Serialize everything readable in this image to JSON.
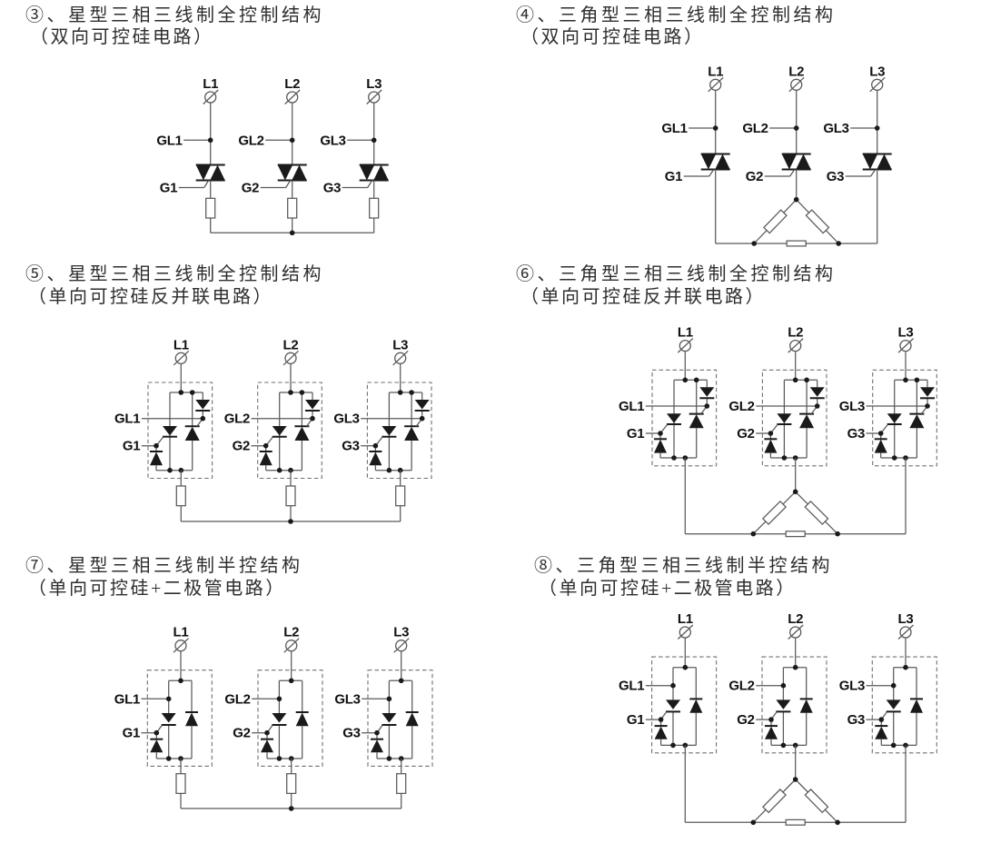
{
  "style": {
    "background": "#ffffff",
    "wire_color": "#595959",
    "device_color": "#1a1a1a",
    "dash_color": "#707070",
    "label_color": "#111111",
    "title_color": "#2e2e2e"
  },
  "panels": [
    {
      "id": "3",
      "title": "③、星型三相三线制全控制结构",
      "subtitle": "（双向可控硅电路）",
      "topology": "star",
      "device": "triac",
      "phases": [
        {
          "line": "L1",
          "trigger": "GL1",
          "gate": "G1"
        },
        {
          "line": "L2",
          "trigger": "GL2",
          "gate": "G2"
        },
        {
          "line": "L3",
          "trigger": "GL3",
          "gate": "G3"
        }
      ]
    },
    {
      "id": "4",
      "title": "④、三角型三相三线制全控制结构",
      "subtitle": "（双向可控硅电路）",
      "topology": "delta",
      "device": "triac",
      "phases": [
        {
          "line": "L1",
          "trigger": "GL1",
          "gate": "G1"
        },
        {
          "line": "L2",
          "trigger": "GL2",
          "gate": "G2"
        },
        {
          "line": "L3",
          "trigger": "GL3",
          "gate": "G3"
        }
      ]
    },
    {
      "id": "5",
      "title": "⑤、星型三相三线制全控制结构",
      "subtitle": "（单向可控硅反并联电路）",
      "topology": "star",
      "device": "scr-antiparallel",
      "phases": [
        {
          "line": "L1",
          "trigger": "GL1",
          "gate": "G1"
        },
        {
          "line": "L2",
          "trigger": "GL2",
          "gate": "G2"
        },
        {
          "line": "L3",
          "trigger": "GL3",
          "gate": "G3"
        }
      ]
    },
    {
      "id": "6",
      "title": "⑥、三角型三相三线制全控制结构",
      "subtitle": "（单向可控硅反并联电路）",
      "topology": "delta",
      "device": "scr-antiparallel",
      "phases": [
        {
          "line": "L1",
          "trigger": "GL1",
          "gate": "G1"
        },
        {
          "line": "L2",
          "trigger": "GL2",
          "gate": "G2"
        },
        {
          "line": "L3",
          "trigger": "GL3",
          "gate": "G3"
        }
      ]
    },
    {
      "id": "7",
      "title": "⑦、星型三相三线制半控结构",
      "subtitle": "（单向可控硅+二极管电路）",
      "topology": "star",
      "device": "scr-diode",
      "phases": [
        {
          "line": "L1",
          "trigger": "GL1",
          "gate": "G1"
        },
        {
          "line": "L2",
          "trigger": "GL2",
          "gate": "G2"
        },
        {
          "line": "L3",
          "trigger": "GL3",
          "gate": "G3"
        }
      ]
    },
    {
      "id": "8",
      "title": "⑧、三角型三相三线制半控结构",
      "subtitle": "（单向可控硅+二极管电路）",
      "topology": "delta",
      "device": "scr-diode",
      "phases": [
        {
          "line": "L1",
          "trigger": "GL1",
          "gate": "G1"
        },
        {
          "line": "L2",
          "trigger": "GL2",
          "gate": "G2"
        },
        {
          "line": "L3",
          "trigger": "GL3",
          "gate": "G3"
        }
      ]
    }
  ]
}
